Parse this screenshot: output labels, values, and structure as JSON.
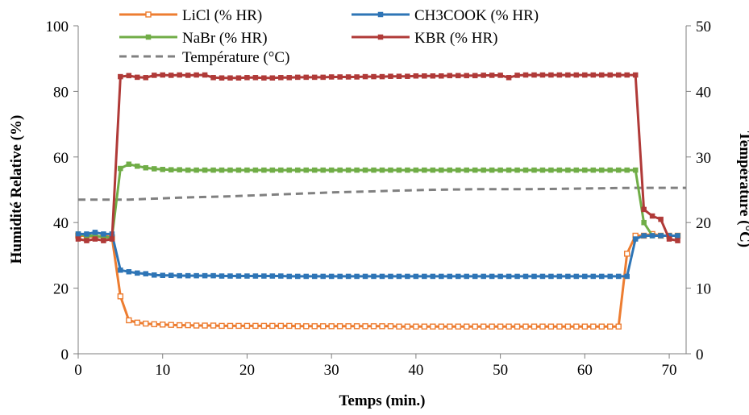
{
  "chart_data": {
    "type": "line",
    "title": "",
    "xlabel": "Temps (min.)",
    "ylabel_left": "Humidité Relative (%)",
    "ylabel_right": "Température (°C)",
    "xlim": [
      0,
      72
    ],
    "ylim_left": [
      0,
      100
    ],
    "ylim_right": [
      0,
      50
    ],
    "x_ticks": [
      0,
      10,
      20,
      30,
      40,
      50,
      60,
      70
    ],
    "y_left_ticks": [
      0,
      20,
      40,
      60,
      80,
      100
    ],
    "y_right_ticks": [
      0,
      10,
      20,
      30,
      40,
      50
    ],
    "grid": false,
    "legend_position": "top",
    "series": [
      {
        "name": "LiCl (% HR)",
        "color": "#ED7D31",
        "axis": "left",
        "marker": "hollow-square",
        "x": [
          0,
          1,
          2,
          3,
          4,
          5,
          6,
          7,
          8,
          9,
          10,
          11,
          12,
          13,
          14,
          15,
          16,
          17,
          18,
          19,
          20,
          21,
          22,
          23,
          24,
          25,
          26,
          27,
          28,
          29,
          30,
          31,
          32,
          33,
          34,
          35,
          36,
          37,
          38,
          39,
          40,
          41,
          42,
          43,
          44,
          45,
          46,
          47,
          48,
          49,
          50,
          51,
          52,
          53,
          54,
          55,
          56,
          57,
          58,
          59,
          60,
          61,
          62,
          63,
          64,
          65,
          66,
          67,
          68,
          69,
          70,
          71
        ],
        "values": [
          36,
          36,
          35.5,
          36,
          35.5,
          17.5,
          10.2,
          9.5,
          9.2,
          9,
          8.9,
          8.8,
          8.7,
          8.7,
          8.6,
          8.6,
          8.6,
          8.5,
          8.5,
          8.5,
          8.5,
          8.5,
          8.5,
          8.5,
          8.5,
          8.5,
          8.4,
          8.4,
          8.4,
          8.4,
          8.4,
          8.4,
          8.4,
          8.4,
          8.4,
          8.4,
          8.4,
          8.4,
          8.3,
          8.3,
          8.3,
          8.3,
          8.3,
          8.3,
          8.3,
          8.3,
          8.3,
          8.3,
          8.3,
          8.3,
          8.3,
          8.3,
          8.3,
          8.3,
          8.3,
          8.3,
          8.3,
          8.3,
          8.3,
          8.3,
          8.3,
          8.3,
          8.3,
          8.3,
          8.3,
          30.5,
          36,
          36,
          36.5,
          36,
          36,
          36
        ]
      },
      {
        "name": "CH3COOK (% HR)",
        "color": "#2E75B6",
        "axis": "left",
        "marker": "square",
        "x": [
          0,
          1,
          2,
          3,
          4,
          5,
          6,
          7,
          8,
          9,
          10,
          11,
          12,
          13,
          14,
          15,
          16,
          17,
          18,
          19,
          20,
          21,
          22,
          23,
          24,
          25,
          26,
          27,
          28,
          29,
          30,
          31,
          32,
          33,
          34,
          35,
          36,
          37,
          38,
          39,
          40,
          41,
          42,
          43,
          44,
          45,
          46,
          47,
          48,
          49,
          50,
          51,
          52,
          53,
          54,
          55,
          56,
          57,
          58,
          59,
          60,
          61,
          62,
          63,
          64,
          65,
          66,
          67,
          68,
          69,
          70,
          71
        ],
        "values": [
          36.5,
          36.5,
          37,
          36.5,
          36.5,
          25.5,
          25,
          24.6,
          24.4,
          24,
          23.9,
          23.9,
          23.8,
          23.8,
          23.8,
          23.8,
          23.8,
          23.7,
          23.7,
          23.7,
          23.7,
          23.7,
          23.7,
          23.7,
          23.7,
          23.6,
          23.6,
          23.6,
          23.6,
          23.6,
          23.6,
          23.6,
          23.6,
          23.6,
          23.6,
          23.6,
          23.6,
          23.6,
          23.6,
          23.6,
          23.6,
          23.6,
          23.6,
          23.6,
          23.6,
          23.6,
          23.6,
          23.6,
          23.6,
          23.6,
          23.6,
          23.6,
          23.6,
          23.6,
          23.6,
          23.6,
          23.6,
          23.6,
          23.6,
          23.6,
          23.6,
          23.6,
          23.6,
          23.6,
          23.6,
          23.6,
          35,
          36,
          36,
          36,
          36,
          36
        ]
      },
      {
        "name": "NaBr (% HR)",
        "color": "#70AD47",
        "axis": "left",
        "marker": "square",
        "x": [
          0,
          1,
          2,
          3,
          4,
          5,
          6,
          7,
          8,
          9,
          10,
          11,
          12,
          13,
          14,
          15,
          16,
          17,
          18,
          19,
          20,
          21,
          22,
          23,
          24,
          25,
          26,
          27,
          28,
          29,
          30,
          31,
          32,
          33,
          34,
          35,
          36,
          37,
          38,
          39,
          40,
          41,
          42,
          43,
          44,
          45,
          46,
          47,
          48,
          49,
          50,
          51,
          52,
          53,
          54,
          55,
          56,
          57,
          58,
          59,
          60,
          61,
          62,
          63,
          64,
          65,
          66,
          67,
          68,
          69,
          70,
          71
        ],
        "values": [
          36.5,
          36,
          36,
          35.5,
          35.5,
          56.5,
          57.8,
          57.2,
          56.7,
          56.4,
          56.2,
          56.1,
          56.1,
          56,
          56,
          56,
          56,
          56,
          56,
          56,
          56,
          56,
          56,
          56,
          56,
          56,
          56,
          56,
          56,
          56,
          56,
          56,
          56,
          56,
          56,
          56,
          56,
          56,
          56,
          56,
          56,
          56,
          56,
          56,
          56,
          56,
          56,
          56,
          56,
          56,
          56,
          56,
          56,
          56,
          56,
          56,
          56,
          56,
          56,
          56,
          56,
          56,
          56,
          56,
          56,
          56,
          56,
          40,
          36,
          36,
          36,
          36
        ]
      },
      {
        "name": "KBR (% HR)",
        "color": "#B03A38",
        "axis": "left",
        "marker": "square",
        "x": [
          0,
          1,
          2,
          3,
          4,
          5,
          6,
          7,
          8,
          9,
          10,
          11,
          12,
          13,
          14,
          15,
          16,
          17,
          18,
          19,
          20,
          21,
          22,
          23,
          24,
          25,
          26,
          27,
          28,
          29,
          30,
          31,
          32,
          33,
          34,
          35,
          36,
          37,
          38,
          39,
          40,
          41,
          42,
          43,
          44,
          45,
          46,
          47,
          48,
          49,
          50,
          51,
          52,
          53,
          54,
          55,
          56,
          57,
          58,
          59,
          60,
          61,
          62,
          63,
          64,
          65,
          66,
          67,
          68,
          69,
          70,
          71
        ],
        "values": [
          35,
          34.5,
          35,
          34.5,
          35,
          84.5,
          84.8,
          84.3,
          84.2,
          84.9,
          85,
          84.9,
          85,
          84.9,
          85,
          85,
          84.2,
          84.1,
          84.1,
          84.1,
          84.2,
          84.2,
          84.1,
          84.1,
          84.2,
          84.2,
          84.3,
          84.3,
          84.3,
          84.3,
          84.4,
          84.4,
          84.4,
          84.4,
          84.5,
          84.5,
          84.5,
          84.6,
          84.6,
          84.6,
          84.7,
          84.7,
          84.7,
          84.7,
          84.8,
          84.8,
          84.8,
          84.8,
          84.9,
          84.9,
          84.9,
          84.2,
          84.9,
          85,
          85,
          85,
          85,
          85,
          85,
          85,
          85,
          85,
          85,
          85,
          85,
          85,
          85,
          44,
          42,
          41,
          35,
          34.5
        ]
      },
      {
        "name": "Température (°C)",
        "color": "#808080",
        "axis": "right",
        "dashed": true,
        "x": [
          0,
          6,
          12,
          18,
          24,
          30,
          36,
          42,
          48,
          54,
          60,
          66,
          72
        ],
        "values": [
          23.5,
          23.5,
          23.8,
          24,
          24.3,
          24.6,
          24.8,
          25,
          25.1,
          25.1,
          25.2,
          25.3,
          25.3
        ]
      }
    ]
  }
}
